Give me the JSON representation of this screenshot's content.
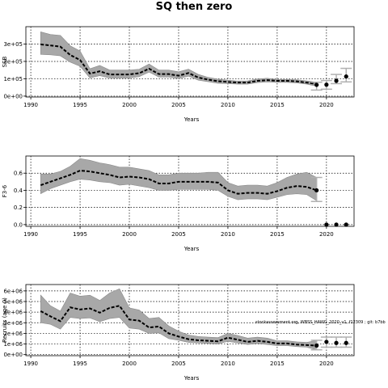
{
  "title": "SQ then zero",
  "chart_data": [
    {
      "type": "line",
      "ylabel": "SSB",
      "xlabel": "Years",
      "xlim": [
        1989.5,
        2022.8
      ],
      "ylim": [
        -5000,
        400000
      ],
      "xticks": [
        1990,
        1995,
        2000,
        2005,
        2010,
        2015,
        2020
      ],
      "yticks": [
        0,
        100000,
        200000,
        300000
      ],
      "ytick_labels": [
        "0e+00",
        "1e+05",
        "2e+05",
        "3e+05"
      ],
      "grid": "dotted",
      "series": [
        {
          "role": "estimate",
          "x": [
            1991,
            1992,
            1993,
            1994,
            1995,
            1996,
            1997,
            1998,
            1999,
            2000,
            2001,
            2002,
            2003,
            2004,
            2005,
            2006,
            2007,
            2008,
            2009,
            2010,
            2011,
            2012,
            2013,
            2014,
            2015,
            2016,
            2017,
            2018,
            2019
          ],
          "values": [
            298000,
            292000,
            285000,
            237000,
            208000,
            130000,
            143000,
            125000,
            125000,
            125000,
            132000,
            158000,
            127000,
            127000,
            118000,
            133000,
            107000,
            95000,
            86000,
            82000,
            78000,
            78000,
            88000,
            92000,
            88000,
            88000,
            85000,
            78000,
            70000
          ],
          "lower": [
            240000,
            238000,
            232000,
            196000,
            172000,
            105000,
            118000,
            104000,
            104000,
            104000,
            112000,
            138000,
            110000,
            110000,
            101000,
            115000,
            92000,
            83000,
            74000,
            72000,
            69000,
            69000,
            78000,
            82000,
            79000,
            79000,
            76000,
            69000,
            58000
          ],
          "upper": [
            370000,
            355000,
            350000,
            290000,
            260000,
            158000,
            177000,
            150000,
            150000,
            150000,
            155000,
            185000,
            150000,
            150000,
            140000,
            155000,
            125000,
            108000,
            98000,
            92000,
            87000,
            88000,
            99000,
            103000,
            96000,
            96000,
            94000,
            88000,
            80000
          ]
        },
        {
          "role": "projection",
          "x": [
            2019,
            2020,
            2021,
            2022
          ],
          "values": [
            65000,
            66000,
            88000,
            113000
          ],
          "lower": [
            35000,
            40000,
            72000,
            82000
          ],
          "upper": [
            80000,
            90000,
            125000,
            160000
          ]
        }
      ]
    },
    {
      "type": "line",
      "ylabel": "F3-6",
      "xlabel": "Years",
      "xlim": [
        1989.5,
        2022.8
      ],
      "ylim": [
        -0.02,
        0.8
      ],
      "xticks": [
        1990,
        1995,
        2000,
        2005,
        2010,
        2015,
        2020
      ],
      "yticks": [
        0.0,
        0.2,
        0.4,
        0.6
      ],
      "ytick_labels": [
        "0.0",
        "0.2",
        "0.4",
        "0.6"
      ],
      "grid": "dotted",
      "series": [
        {
          "role": "estimate",
          "x": [
            1991,
            1992,
            1993,
            1994,
            1995,
            1996,
            1997,
            1998,
            1999,
            2000,
            2001,
            2002,
            2003,
            2004,
            2005,
            2006,
            2007,
            2008,
            2009,
            2010,
            2011,
            2012,
            2013,
            2014,
            2015,
            2016,
            2017,
            2018,
            2019
          ],
          "values": [
            0.46,
            0.5,
            0.54,
            0.58,
            0.63,
            0.62,
            0.6,
            0.58,
            0.55,
            0.56,
            0.55,
            0.53,
            0.48,
            0.48,
            0.5,
            0.5,
            0.5,
            0.5,
            0.49,
            0.4,
            0.36,
            0.37,
            0.37,
            0.36,
            0.39,
            0.43,
            0.45,
            0.44,
            0.4
          ],
          "lower": [
            0.36,
            0.42,
            0.46,
            0.5,
            0.53,
            0.52,
            0.5,
            0.49,
            0.46,
            0.47,
            0.45,
            0.43,
            0.4,
            0.4,
            0.41,
            0.41,
            0.41,
            0.41,
            0.4,
            0.33,
            0.29,
            0.3,
            0.3,
            0.29,
            0.32,
            0.35,
            0.36,
            0.35,
            0.28
          ],
          "upper": [
            0.59,
            0.59,
            0.62,
            0.68,
            0.77,
            0.75,
            0.72,
            0.7,
            0.67,
            0.67,
            0.65,
            0.63,
            0.58,
            0.58,
            0.6,
            0.6,
            0.6,
            0.61,
            0.61,
            0.49,
            0.45,
            0.46,
            0.46,
            0.45,
            0.49,
            0.55,
            0.59,
            0.61,
            0.55
          ]
        },
        {
          "role": "projection",
          "x": [
            2019,
            2020,
            2021,
            2022
          ],
          "values": [
            0.4,
            0.0,
            0.0,
            0.0
          ],
          "lower": [
            0.27,
            0.0,
            0.0,
            0.0
          ],
          "upper": [
            0.55,
            0.0,
            0.0,
            0.0
          ]
        }
      ]
    },
    {
      "type": "line",
      "ylabel": "Recruits (age 0)",
      "xlabel": "Years",
      "annotation": "stockassessment.org, WBSS_HAWG_2020_v1, f12309 ; git: b7bb",
      "xlim": [
        1989.5,
        2022.8
      ],
      "ylim": [
        -100000,
        6600000
      ],
      "xticks": [
        1990,
        1995,
        2000,
        2005,
        2010,
        2015,
        2020
      ],
      "yticks": [
        0,
        1000000,
        2000000,
        3000000,
        4000000,
        5000000,
        6000000
      ],
      "ytick_labels": [
        "0e+00",
        "1e+06",
        "2e+06",
        "3e+06",
        "4e+06",
        "5e+06",
        "6e+06"
      ],
      "grid": "dotted",
      "series": [
        {
          "role": "estimate",
          "x": [
            1991,
            1992,
            1993,
            1994,
            1995,
            1996,
            1997,
            1998,
            1999,
            2000,
            2001,
            2002,
            2003,
            2004,
            2005,
            2006,
            2007,
            2008,
            2009,
            2010,
            2011,
            2012,
            2013,
            2014,
            2015,
            2016,
            2017,
            2018,
            2019
          ],
          "values": [
            4100000,
            3600000,
            3150000,
            4450000,
            4250000,
            4350000,
            3950000,
            4400000,
            4600000,
            3300000,
            3200000,
            2550000,
            2650000,
            2000000,
            1700000,
            1450000,
            1350000,
            1300000,
            1250000,
            1600000,
            1400000,
            1200000,
            1300000,
            1200000,
            1050000,
            1050000,
            950000,
            900000,
            850000
          ],
          "lower": [
            3000000,
            2850000,
            2400000,
            3500000,
            3400000,
            3450000,
            3100000,
            3400000,
            3500000,
            2500000,
            2400000,
            2000000,
            2050000,
            1500000,
            1350000,
            1150000,
            1100000,
            1050000,
            1000000,
            1250000,
            1100000,
            950000,
            1050000,
            950000,
            850000,
            850000,
            750000,
            700000,
            450000
          ],
          "upper": [
            5600000,
            4600000,
            4100000,
            5800000,
            5500000,
            5600000,
            5100000,
            5800000,
            6200000,
            4400000,
            4200000,
            3400000,
            3500000,
            2700000,
            2200000,
            1850000,
            1700000,
            1650000,
            1600000,
            2000000,
            1800000,
            1550000,
            1650000,
            1550000,
            1300000,
            1300000,
            1200000,
            1150000,
            1350000
          ]
        },
        {
          "role": "projection",
          "x": [
            2019,
            2020,
            2021,
            2022
          ],
          "values": [
            850000,
            1200000,
            1100000,
            1100000
          ],
          "lower": [
            450000,
            700000,
            700000,
            700000
          ],
          "upper": [
            1350000,
            1650000,
            1650000,
            1650000
          ]
        }
      ]
    }
  ]
}
